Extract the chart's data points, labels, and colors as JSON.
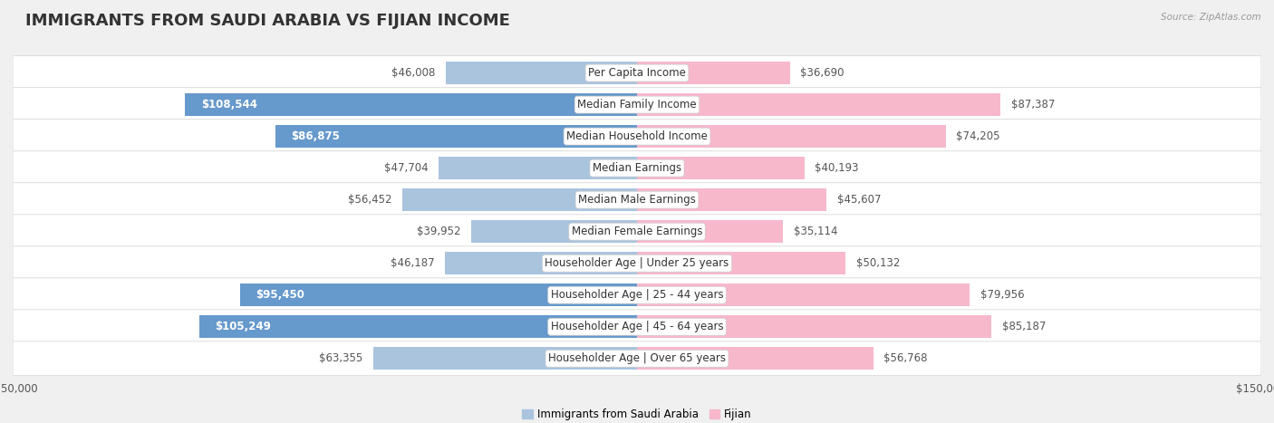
{
  "title": "IMMIGRANTS FROM SAUDI ARABIA VS FIJIAN INCOME",
  "source": "Source: ZipAtlas.com",
  "categories": [
    "Per Capita Income",
    "Median Family Income",
    "Median Household Income",
    "Median Earnings",
    "Median Male Earnings",
    "Median Female Earnings",
    "Householder Age | Under 25 years",
    "Householder Age | 25 - 44 years",
    "Householder Age | 45 - 64 years",
    "Householder Age | Over 65 years"
  ],
  "saudi_values": [
    46008,
    108544,
    86875,
    47704,
    56452,
    39952,
    46187,
    95450,
    105249,
    63355
  ],
  "fijian_values": [
    36690,
    87387,
    74205,
    40193,
    45607,
    35114,
    50132,
    79956,
    85187,
    56768
  ],
  "saudi_labels": [
    "$46,008",
    "$108,544",
    "$86,875",
    "$47,704",
    "$56,452",
    "$39,952",
    "$46,187",
    "$95,450",
    "$105,249",
    "$63,355"
  ],
  "fijian_labels": [
    "$36,690",
    "$87,387",
    "$74,205",
    "$40,193",
    "$45,607",
    "$35,114",
    "$50,132",
    "$79,956",
    "$85,187",
    "$56,768"
  ],
  "saudi_color_normal": "#aac4de",
  "saudi_color_highlight": "#6699cc",
  "fijian_color_normal": "#f7b8cc",
  "fijian_color_highlight": "#f07aa0",
  "saudi_inside_threshold": 80000,
  "fijian_inside_threshold": 999999,
  "max_val": 150000,
  "background_color": "#f0f0f0",
  "row_bg_color": "#ffffff",
  "row_border_color": "#d8d8d8",
  "title_color": "#333333",
  "label_color_dark": "#555555",
  "label_color_white": "#ffffff",
  "title_fontsize": 13,
  "label_fontsize": 8.5,
  "category_fontsize": 8.5,
  "axis_label_fontsize": 8.5
}
